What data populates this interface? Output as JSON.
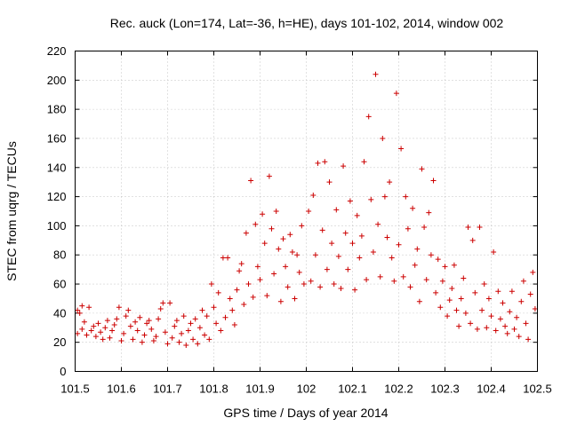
{
  "chart_data": {
    "type": "scatter",
    "title": "Rec. auck (Lon=174, Lat=-36, h=HE), days 101-102, 2014, window 002",
    "xlabel": "GPS time / Days of year 2014",
    "ylabel": "STEC from uqrg / TECUs",
    "xlim": [
      101.5,
      102.5
    ],
    "ylim": [
      0,
      220
    ],
    "xticks": [
      101.5,
      101.6,
      101.7,
      101.8,
      101.9,
      102,
      102.1,
      102.2,
      102.3,
      102.4,
      102.5
    ],
    "xtick_labels": [
      "101.5",
      "101.6",
      "101.7",
      "101.8",
      "101.9",
      "102",
      "102.1",
      "102.2",
      "102.3",
      "102.4",
      "102.5"
    ],
    "yticks": [
      0,
      20,
      40,
      60,
      80,
      100,
      120,
      140,
      160,
      180,
      200,
      220
    ],
    "ytick_labels": [
      "0",
      "20",
      "40",
      "60",
      "80",
      "100",
      "120",
      "140",
      "160",
      "180",
      "200",
      "220"
    ],
    "grid": true,
    "marker": "+",
    "color": "#cc0000",
    "series": [
      {
        "name": "STEC",
        "points": [
          [
            101.505,
            42
          ],
          [
            101.51,
            40
          ],
          [
            101.515,
            45
          ],
          [
            101.505,
            26
          ],
          [
            101.515,
            29
          ],
          [
            101.52,
            34
          ],
          [
            101.525,
            25
          ],
          [
            101.53,
            44
          ],
          [
            101.535,
            28
          ],
          [
            101.54,
            31
          ],
          [
            101.545,
            24
          ],
          [
            101.55,
            33
          ],
          [
            101.555,
            27
          ],
          [
            101.56,
            22
          ],
          [
            101.565,
            30
          ],
          [
            101.57,
            35
          ],
          [
            101.575,
            23
          ],
          [
            101.58,
            28
          ],
          [
            101.585,
            32
          ],
          [
            101.59,
            36
          ],
          [
            101.595,
            44
          ],
          [
            101.6,
            21
          ],
          [
            101.605,
            26
          ],
          [
            101.61,
            38
          ],
          [
            101.615,
            42
          ],
          [
            101.62,
            31
          ],
          [
            101.625,
            22
          ],
          [
            101.63,
            34
          ],
          [
            101.635,
            28
          ],
          [
            101.64,
            37
          ],
          [
            101.645,
            20
          ],
          [
            101.65,
            25
          ],
          [
            101.655,
            33
          ],
          [
            101.66,
            35
          ],
          [
            101.665,
            29
          ],
          [
            101.67,
            21
          ],
          [
            101.675,
            24
          ],
          [
            101.68,
            36
          ],
          [
            101.685,
            43
          ],
          [
            101.69,
            47
          ],
          [
            101.695,
            27
          ],
          [
            101.7,
            19
          ],
          [
            101.705,
            47
          ],
          [
            101.71,
            23
          ],
          [
            101.715,
            31
          ],
          [
            101.72,
            35
          ],
          [
            101.725,
            20
          ],
          [
            101.73,
            26
          ],
          [
            101.735,
            38
          ],
          [
            101.74,
            18
          ],
          [
            101.745,
            28
          ],
          [
            101.75,
            33
          ],
          [
            101.755,
            22
          ],
          [
            101.76,
            36
          ],
          [
            101.765,
            19
          ],
          [
            101.77,
            30
          ],
          [
            101.775,
            42
          ],
          [
            101.78,
            25
          ],
          [
            101.785,
            38
          ],
          [
            101.79,
            22
          ],
          [
            101.795,
            60
          ],
          [
            101.8,
            44
          ],
          [
            101.805,
            33
          ],
          [
            101.81,
            54
          ],
          [
            101.815,
            28
          ],
          [
            101.82,
            78
          ],
          [
            101.825,
            37
          ],
          [
            101.83,
            78
          ],
          [
            101.835,
            50
          ],
          [
            101.84,
            42
          ],
          [
            101.845,
            32
          ],
          [
            101.85,
            56
          ],
          [
            101.855,
            69
          ],
          [
            101.86,
            74
          ],
          [
            101.865,
            46
          ],
          [
            101.87,
            95
          ],
          [
            101.875,
            60
          ],
          [
            101.88,
            131
          ],
          [
            101.885,
            51
          ],
          [
            101.89,
            101
          ],
          [
            101.895,
            72
          ],
          [
            101.9,
            63
          ],
          [
            101.905,
            108
          ],
          [
            101.91,
            88
          ],
          [
            101.915,
            52
          ],
          [
            101.92,
            134
          ],
          [
            101.925,
            98
          ],
          [
            101.93,
            67
          ],
          [
            101.935,
            110
          ],
          [
            101.94,
            84
          ],
          [
            101.945,
            48
          ],
          [
            101.95,
            91
          ],
          [
            101.955,
            72
          ],
          [
            101.96,
            58
          ],
          [
            101.965,
            94
          ],
          [
            101.97,
            82
          ],
          [
            101.975,
            50
          ],
          [
            101.98,
            80
          ],
          [
            101.985,
            68
          ],
          [
            101.99,
            100
          ],
          [
            101.995,
            60
          ],
          [
            102.005,
            110
          ],
          [
            102.01,
            62
          ],
          [
            102.015,
            121
          ],
          [
            102.02,
            80
          ],
          [
            102.025,
            143
          ],
          [
            102.03,
            58
          ],
          [
            102.035,
            97
          ],
          [
            102.04,
            144
          ],
          [
            102.045,
            70
          ],
          [
            102.05,
            130
          ],
          [
            102.055,
            88
          ],
          [
            102.06,
            60
          ],
          [
            102.065,
            111
          ],
          [
            102.07,
            79
          ],
          [
            102.075,
            57
          ],
          [
            102.08,
            141
          ],
          [
            102.085,
            95
          ],
          [
            102.09,
            70
          ],
          [
            102.095,
            117
          ],
          [
            102.1,
            88
          ],
          [
            102.105,
            56
          ],
          [
            102.11,
            107
          ],
          [
            102.115,
            78
          ],
          [
            102.12,
            93
          ],
          [
            102.125,
            144
          ],
          [
            102.13,
            63
          ],
          [
            102.135,
            175
          ],
          [
            102.14,
            118
          ],
          [
            102.145,
            82
          ],
          [
            102.15,
            204
          ],
          [
            102.155,
            101
          ],
          [
            102.16,
            65
          ],
          [
            102.165,
            160
          ],
          [
            102.17,
            120
          ],
          [
            102.175,
            92
          ],
          [
            102.18,
            130
          ],
          [
            102.185,
            78
          ],
          [
            102.19,
            62
          ],
          [
            102.195,
            191
          ],
          [
            102.2,
            87
          ],
          [
            102.205,
            153
          ],
          [
            102.21,
            65
          ],
          [
            102.215,
            120
          ],
          [
            102.22,
            98
          ],
          [
            102.225,
            58
          ],
          [
            102.23,
            112
          ],
          [
            102.235,
            73
          ],
          [
            102.24,
            84
          ],
          [
            102.245,
            48
          ],
          [
            102.25,
            139
          ],
          [
            102.255,
            99
          ],
          [
            102.26,
            63
          ],
          [
            102.265,
            109
          ],
          [
            102.27,
            80
          ],
          [
            102.275,
            131
          ],
          [
            102.28,
            54
          ],
          [
            102.285,
            77
          ],
          [
            102.29,
            44
          ],
          [
            102.295,
            62
          ],
          [
            102.3,
            72
          ],
          [
            102.305,
            38
          ],
          [
            102.31,
            49
          ],
          [
            102.315,
            57
          ],
          [
            102.32,
            73
          ],
          [
            102.325,
            42
          ],
          [
            102.33,
            31
          ],
          [
            102.335,
            50
          ],
          [
            102.34,
            64
          ],
          [
            102.345,
            40
          ],
          [
            102.35,
            99
          ],
          [
            102.355,
            33
          ],
          [
            102.36,
            90
          ],
          [
            102.365,
            54
          ],
          [
            102.37,
            29
          ],
          [
            102.375,
            99
          ],
          [
            102.38,
            42
          ],
          [
            102.385,
            60
          ],
          [
            102.39,
            30
          ],
          [
            102.395,
            50
          ],
          [
            102.4,
            38
          ],
          [
            102.405,
            82
          ],
          [
            102.41,
            28
          ],
          [
            102.415,
            55
          ],
          [
            102.42,
            36
          ],
          [
            102.425,
            47
          ],
          [
            102.43,
            31
          ],
          [
            102.435,
            26
          ],
          [
            102.44,
            41
          ],
          [
            102.445,
            55
          ],
          [
            102.45,
            29
          ],
          [
            102.455,
            37
          ],
          [
            102.46,
            24
          ],
          [
            102.465,
            48
          ],
          [
            102.47,
            62
          ],
          [
            102.475,
            33
          ],
          [
            102.48,
            22
          ],
          [
            102.485,
            53
          ],
          [
            102.49,
            68
          ],
          [
            102.495,
            43
          ]
        ]
      }
    ]
  }
}
